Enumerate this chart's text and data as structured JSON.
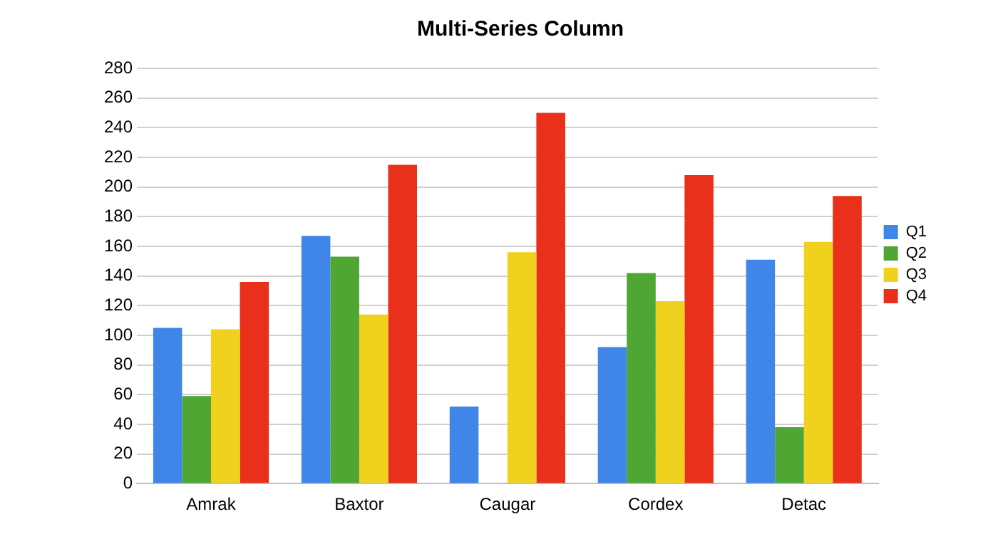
{
  "chart_data": {
    "type": "bar",
    "title": "Multi-Series Column",
    "categories": [
      "Amrak",
      "Baxtor",
      "Caugar",
      "Cordex",
      "Detac"
    ],
    "series": [
      {
        "name": "Q1",
        "color": "#3f86e8",
        "values": [
          105,
          167,
          52,
          92,
          151
        ]
      },
      {
        "name": "Q2",
        "color": "#4fa632",
        "values": [
          59,
          153,
          null,
          142,
          38
        ]
      },
      {
        "name": "Q3",
        "color": "#f0d21e",
        "values": [
          104,
          114,
          156,
          123,
          163
        ]
      },
      {
        "name": "Q4",
        "color": "#e8301a",
        "values": [
          136,
          215,
          250,
          208,
          194
        ]
      }
    ],
    "ylim": [
      0,
      280
    ],
    "yticks": [
      0,
      20,
      40,
      60,
      80,
      100,
      120,
      140,
      160,
      180,
      200,
      220,
      240,
      260,
      280
    ],
    "grid": "y",
    "legend": "right"
  }
}
